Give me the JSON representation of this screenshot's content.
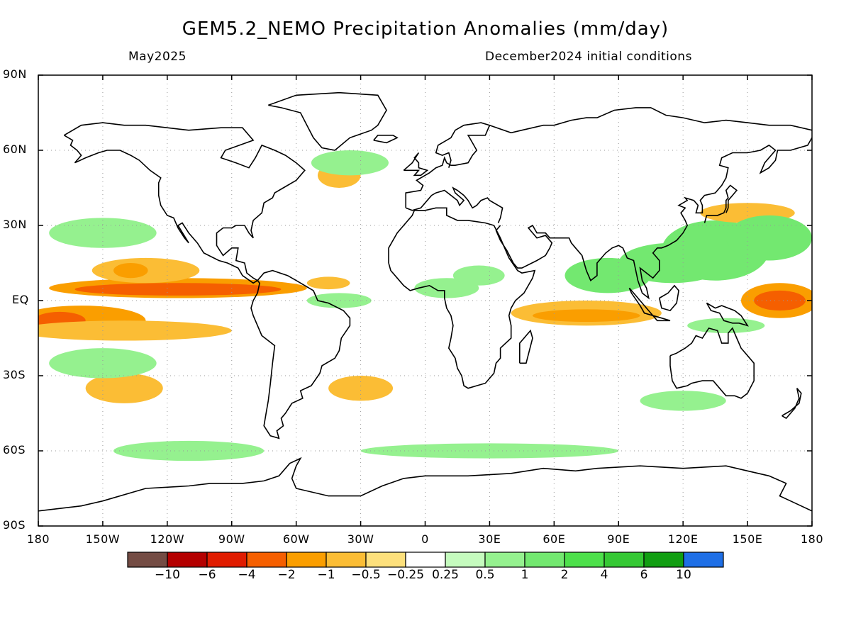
{
  "title": "GEM5.2_NEMO Precipitation Anomalies (mm/day)",
  "subtitle_left": "May2025",
  "subtitle_right": "December2024 initial conditions",
  "lat_ticks": [
    {
      "label": "90N",
      "lat": 90
    },
    {
      "label": "60N",
      "lat": 60
    },
    {
      "label": "30N",
      "lat": 30
    },
    {
      "label": "EQ",
      "lat": 0
    },
    {
      "label": "30S",
      "lat": -30
    },
    {
      "label": "60S",
      "lat": -60
    },
    {
      "label": "90S",
      "lat": -90
    }
  ],
  "lon_ticks": [
    {
      "label": "180",
      "lon": -180
    },
    {
      "label": "150W",
      "lon": -150
    },
    {
      "label": "120W",
      "lon": -120
    },
    {
      "label": "90W",
      "lon": -90
    },
    {
      "label": "60W",
      "lon": -60
    },
    {
      "label": "30W",
      "lon": -30
    },
    {
      "label": "0",
      "lon": 0
    },
    {
      "label": "30E",
      "lon": 30
    },
    {
      "label": "60E",
      "lon": 60
    },
    {
      "label": "90E",
      "lon": 90
    },
    {
      "label": "120E",
      "lon": 120
    },
    {
      "label": "150E",
      "lon": 150
    },
    {
      "label": "180",
      "lon": 180
    }
  ],
  "colorbar": {
    "colors": [
      "#744c44",
      "#b40000",
      "#e01c00",
      "#f55f00",
      "#fa9e00",
      "#fbbd35",
      "#fde07c",
      "#ffffff",
      "#c5fbbe",
      "#95f18f",
      "#73e870",
      "#4de04b",
      "#35c834",
      "#119e12",
      "#1e6fe6"
    ],
    "labels": [
      "−10",
      "−6",
      "−4",
      "−2",
      "−1",
      "−0.5",
      "−0.25",
      "0.25",
      "0.5",
      "1",
      "2",
      "4",
      "6",
      "10"
    ]
  },
  "anomaly_regions": [
    {
      "lon": -115,
      "lat": 5,
      "rx": 60,
      "ry": 4,
      "value": -2
    },
    {
      "lon": -115,
      "lat": 4.5,
      "rx": 48,
      "ry": 2.5,
      "value": -4
    },
    {
      "lon": -160,
      "lat": -8,
      "rx": 30,
      "ry": 6,
      "value": -2
    },
    {
      "lon": -170,
      "lat": -8,
      "rx": 12,
      "ry": 3.5,
      "value": -4
    },
    {
      "lon": -140,
      "lat": -12,
      "rx": 50,
      "ry": 4,
      "value": -1
    },
    {
      "lon": -130,
      "lat": 12,
      "rx": 25,
      "ry": 5,
      "value": -1
    },
    {
      "lon": -137,
      "lat": 12,
      "rx": 8,
      "ry": 3,
      "value": -2
    },
    {
      "lon": -140,
      "lat": -35,
      "rx": 18,
      "ry": 6,
      "value": -1
    },
    {
      "lon": -110,
      "lat": -60,
      "rx": 35,
      "ry": 4,
      "value": 0.5
    },
    {
      "lon": -150,
      "lat": 27,
      "rx": 25,
      "ry": 6,
      "value": 0.5
    },
    {
      "lon": -150,
      "lat": -25,
      "rx": 25,
      "ry": 6,
      "value": 0.5
    },
    {
      "lon": -40,
      "lat": 0,
      "rx": 15,
      "ry": 3,
      "value": 0.5
    },
    {
      "lon": -45,
      "lat": 7,
      "rx": 10,
      "ry": 2.5,
      "value": -1
    },
    {
      "lon": -30,
      "lat": -35,
      "rx": 15,
      "ry": 5,
      "value": -1
    },
    {
      "lon": -40,
      "lat": 50,
      "rx": 10,
      "ry": 5,
      "value": -1
    },
    {
      "lon": -35,
      "lat": 55,
      "rx": 18,
      "ry": 5,
      "value": 0.5
    },
    {
      "lon": 10,
      "lat": 5,
      "rx": 15,
      "ry": 4,
      "value": 0.5
    },
    {
      "lon": 25,
      "lat": 10,
      "rx": 12,
      "ry": 4,
      "value": 0.5
    },
    {
      "lon": 75,
      "lat": -5,
      "rx": 35,
      "ry": 5,
      "value": -1
    },
    {
      "lon": 75,
      "lat": -6,
      "rx": 25,
      "ry": 2.5,
      "value": -2
    },
    {
      "lon": 85,
      "lat": 10,
      "rx": 20,
      "ry": 7,
      "value": 1
    },
    {
      "lon": 115,
      "lat": 15,
      "rx": 25,
      "ry": 8,
      "value": 1
    },
    {
      "lon": 135,
      "lat": 20,
      "rx": 25,
      "ry": 12,
      "value": 1
    },
    {
      "lon": 165,
      "lat": 0,
      "rx": 18,
      "ry": 7,
      "value": -2
    },
    {
      "lon": 165,
      "lat": 0,
      "rx": 12,
      "ry": 4,
      "value": -4
    },
    {
      "lon": 150,
      "lat": 35,
      "rx": 22,
      "ry": 4,
      "value": -1
    },
    {
      "lon": 160,
      "lat": 25,
      "rx": 20,
      "ry": 9,
      "value": 1
    },
    {
      "lon": 120,
      "lat": -40,
      "rx": 20,
      "ry": 4,
      "value": 0.5
    },
    {
      "lon": 30,
      "lat": -60,
      "rx": 60,
      "ry": 3,
      "value": 0.5
    },
    {
      "lon": 140,
      "lat": -10,
      "rx": 18,
      "ry": 3,
      "value": 0.5
    }
  ]
}
